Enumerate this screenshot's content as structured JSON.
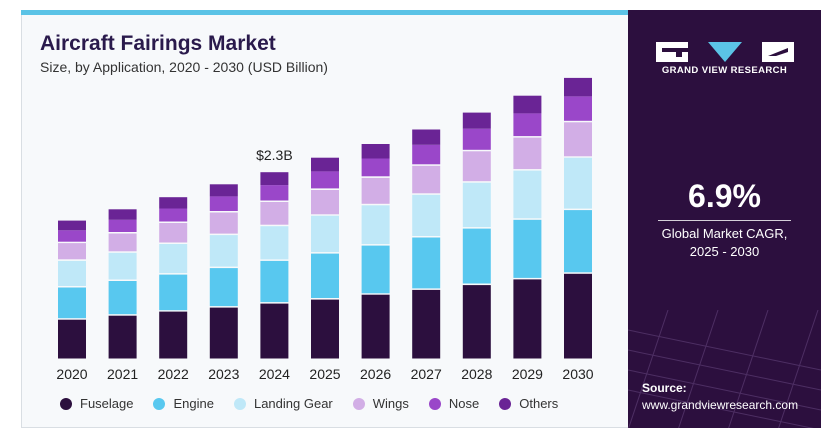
{
  "header": {
    "title": "Aircraft Fairings Market",
    "subtitle": "Size, by Application, 2020 - 2030 (USD Billion)"
  },
  "sidebar": {
    "brand": "GRAND VIEW RESEARCH",
    "cagr_value": "6.9%",
    "cagr_label_line1": "Global Market CAGR,",
    "cagr_label_line2": "2025 - 2030",
    "source_label": "Source:",
    "source_url": "www.grandviewresearch.com"
  },
  "colors": {
    "accent_bar": "#5bc3e6",
    "sidebar_bg": "#2c0f3e"
  },
  "chart_data": {
    "type": "bar",
    "stacked": true,
    "title": "Aircraft Fairings Market",
    "subtitle": "Size, by Application, 2020 - 2030 (USD Billion)",
    "categories": [
      "2020",
      "2021",
      "2022",
      "2023",
      "2024",
      "2025",
      "2026",
      "2027",
      "2028",
      "2029",
      "2030"
    ],
    "annotation": {
      "category": "2024",
      "text": "$2.3B"
    },
    "legend_position": "bottom",
    "grid": false,
    "ylim": [
      0,
      3.4
    ],
    "series": [
      {
        "name": "Fuselage",
        "color": "#2c0f3e",
        "values": [
          0.5,
          0.55,
          0.6,
          0.65,
          0.7,
          0.75,
          0.81,
          0.87,
          0.93,
          1.0,
          1.07
        ]
      },
      {
        "name": "Engine",
        "color": "#58c8ef",
        "values": [
          0.4,
          0.43,
          0.46,
          0.49,
          0.53,
          0.57,
          0.61,
          0.65,
          0.7,
          0.74,
          0.79
        ]
      },
      {
        "name": "Landing Gear",
        "color": "#bfe8f8",
        "values": [
          0.33,
          0.35,
          0.38,
          0.41,
          0.43,
          0.47,
          0.5,
          0.53,
          0.57,
          0.61,
          0.65
        ]
      },
      {
        "name": "Wings",
        "color": "#d2aee6",
        "values": [
          0.22,
          0.24,
          0.26,
          0.28,
          0.3,
          0.32,
          0.34,
          0.36,
          0.39,
          0.41,
          0.44
        ]
      },
      {
        "name": "Nose",
        "color": "#9a47c9",
        "values": [
          0.16,
          0.17,
          0.18,
          0.2,
          0.21,
          0.23,
          0.24,
          0.26,
          0.28,
          0.3,
          0.32
        ]
      },
      {
        "name": "Others",
        "color": "#6a2495",
        "values": [
          0.12,
          0.13,
          0.14,
          0.15,
          0.16,
          0.17,
          0.18,
          0.19,
          0.2,
          0.22,
          0.23
        ]
      }
    ]
  }
}
